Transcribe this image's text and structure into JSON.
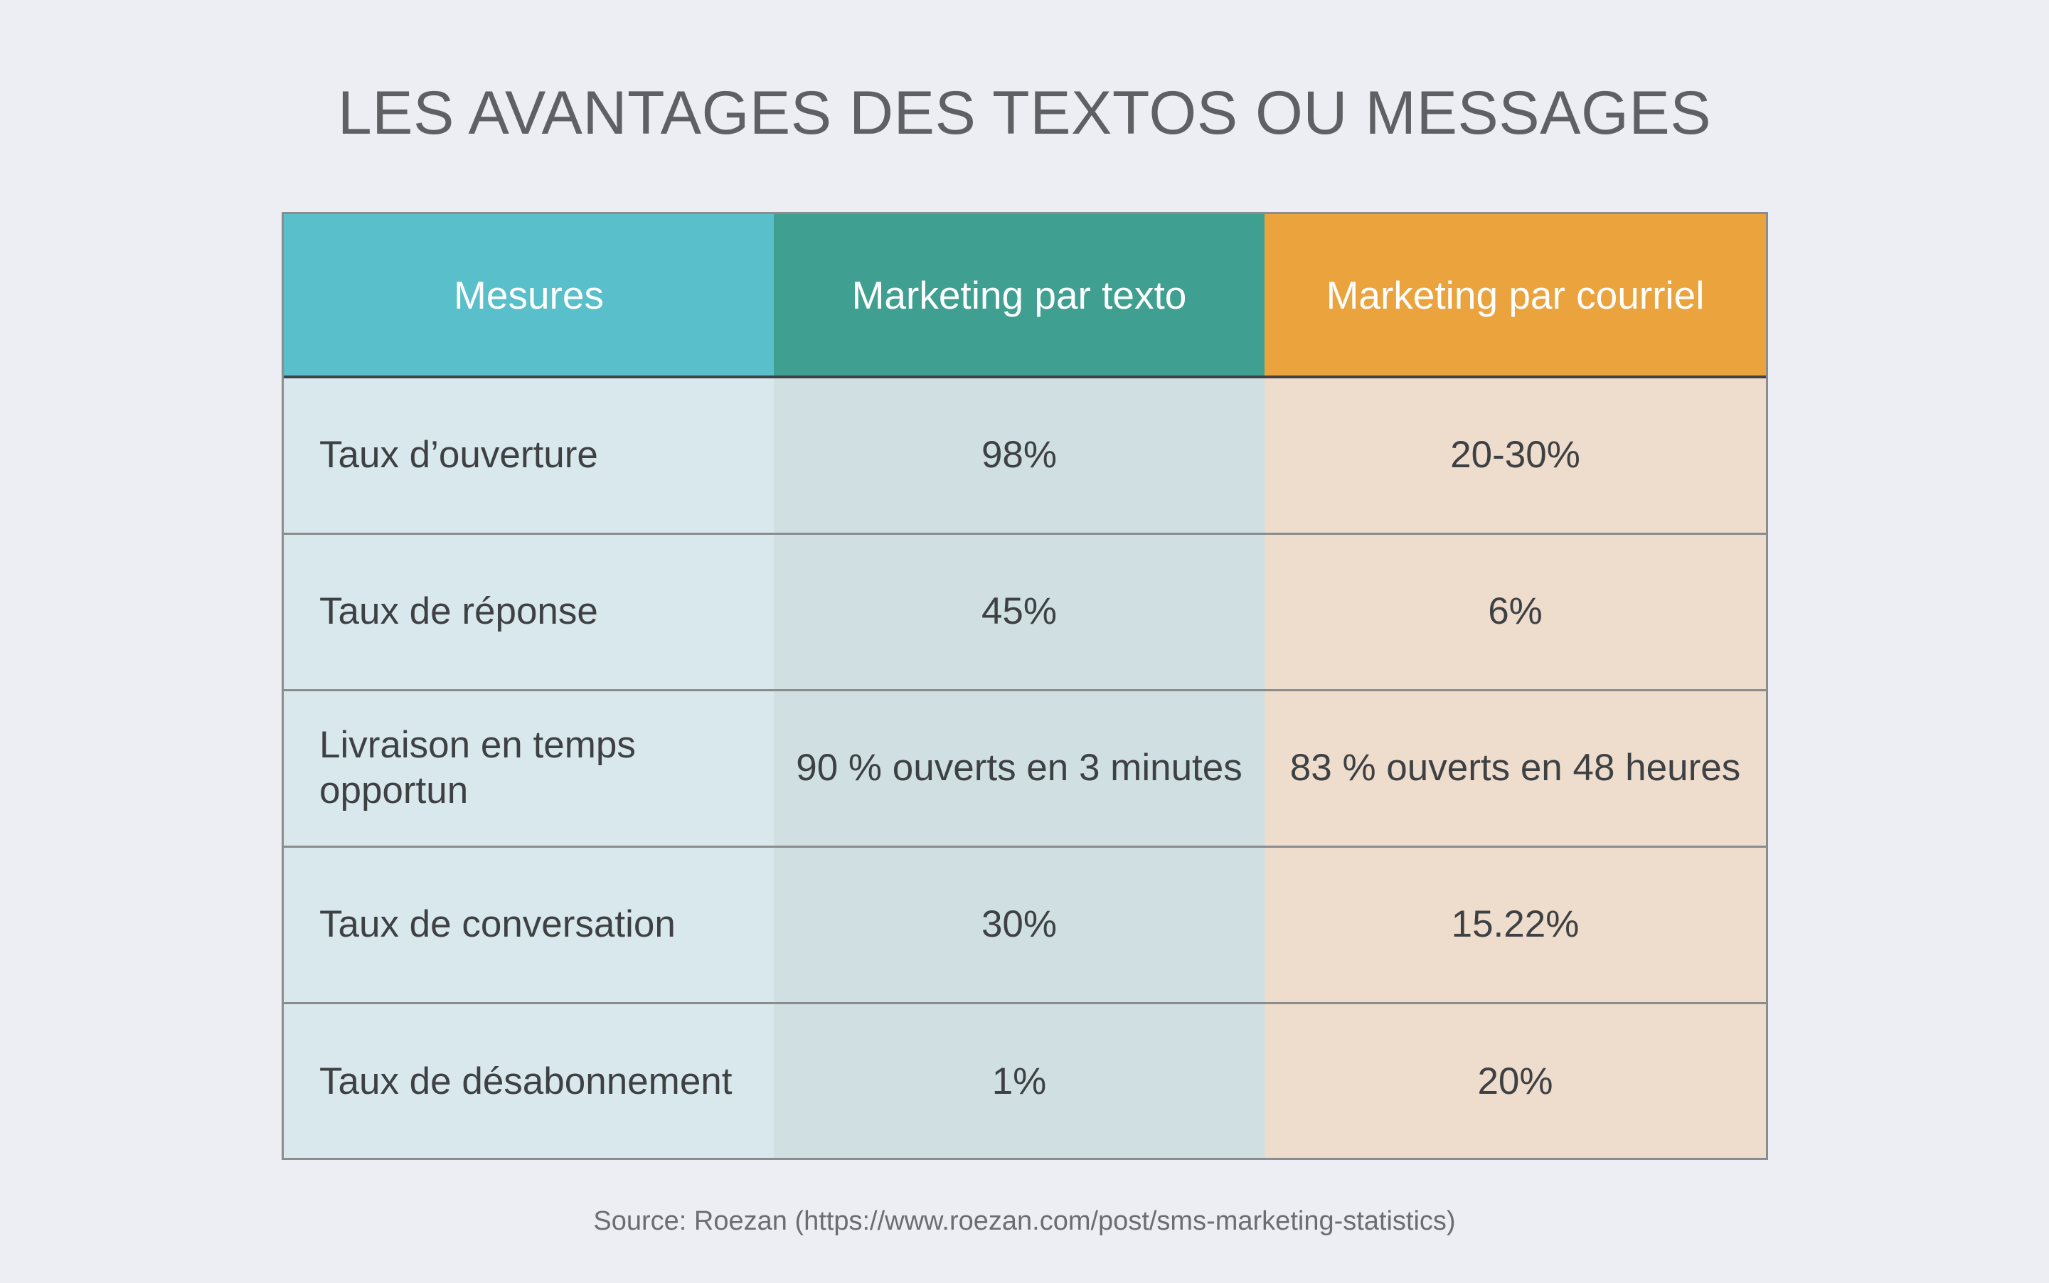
{
  "chart_data": {
    "type": "table",
    "title": "LES AVANTAGES DES TEXTOS OU MESSAGES",
    "columns": [
      "Mesures",
      "Marketing par texto",
      "Marketing par courriel"
    ],
    "rows": [
      [
        "Taux d’ouverture",
        "98%",
        "20-30%"
      ],
      [
        "Taux de réponse",
        "45%",
        "6%"
      ],
      [
        "Livraison en temps opportun",
        "90 % ouverts en 3 minutes",
        "83 % ouverts en 48 heures"
      ],
      [
        "Taux de conversation",
        "30%",
        "15.22%"
      ],
      [
        "Taux de désabonnement",
        "1%",
        "20%"
      ]
    ],
    "source": "Source: Roezan (https://www.roezan.com/post/sms-marketing-statistics)"
  },
  "colors": {
    "background": "#edeef3",
    "header_measures": "#59bfca",
    "header_text_marketing": "#3f9f90",
    "header_email_marketing": "#eba33e",
    "body_measures": "#d9e8ec",
    "body_text_marketing": "#d0e0e2",
    "body_email_marketing": "#eedccc"
  }
}
